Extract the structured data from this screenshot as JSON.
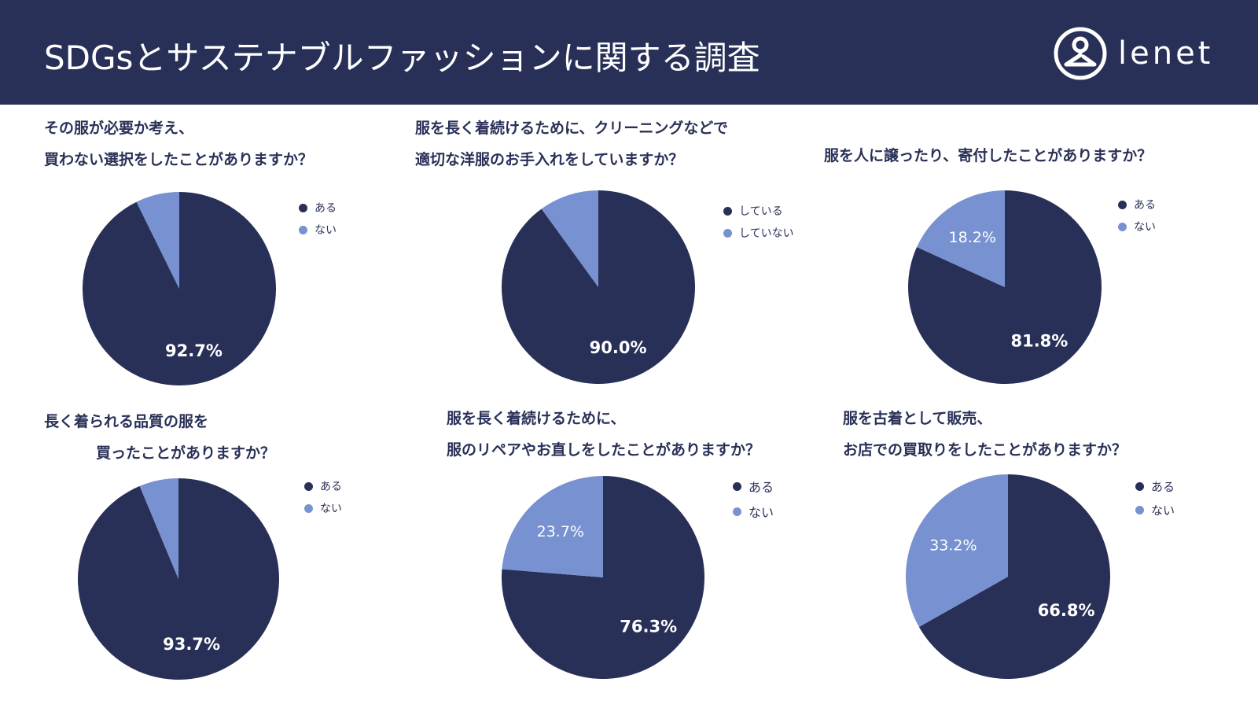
{
  "header": {
    "title": "SDGsとサステナブルファッションに関する調査",
    "logo_text": "lenet",
    "background": "#283057"
  },
  "colors": {
    "major": "#283057",
    "minor": "#7891d0"
  },
  "icons": {
    "logo": "hanger-person-logo-icon"
  },
  "chart_data": [
    {
      "type": "pie",
      "question": [
        "その服が必要か考え、",
        "買わない選択をしたことがありますか？"
      ],
      "categories": [
        "ある",
        "ない"
      ],
      "values": [
        92.7,
        7.3
      ],
      "labels": [
        "92.7%",
        ""
      ]
    },
    {
      "type": "pie",
      "question": [
        "服を長く着続けるために、クリーニングなどで",
        "適切な洋服のお手入れをしていますか？"
      ],
      "categories": [
        "している",
        "していない"
      ],
      "values": [
        90.0,
        10.0
      ],
      "labels": [
        "90.0%",
        ""
      ]
    },
    {
      "type": "pie",
      "question": [
        "服を人に譲ったり、寄付したことがありますか？"
      ],
      "categories": [
        "ある",
        "ない"
      ],
      "values": [
        81.8,
        18.2
      ],
      "labels": [
        "81.8%",
        "18.2%"
      ]
    },
    {
      "type": "pie",
      "question": [
        "長く着られる品質の服を",
        "買ったことがありますか？"
      ],
      "categories": [
        "ある",
        "ない"
      ],
      "values": [
        93.7,
        6.3
      ],
      "labels": [
        "93.7%",
        ""
      ]
    },
    {
      "type": "pie",
      "question": [
        "服を長く着続けるために、",
        "服のリペアやお直しをしたことがありますか？"
      ],
      "categories": [
        "ある",
        "ない"
      ],
      "values": [
        76.3,
        23.7
      ],
      "labels": [
        "76.3%",
        "23.7%"
      ]
    },
    {
      "type": "pie",
      "question": [
        "服を古着として販売、",
        "お店での買取りをしたことがありますか？"
      ],
      "categories": [
        "ある",
        "ない"
      ],
      "values": [
        66.8,
        33.2
      ],
      "labels": [
        "66.8%",
        "33.2%"
      ]
    }
  ]
}
